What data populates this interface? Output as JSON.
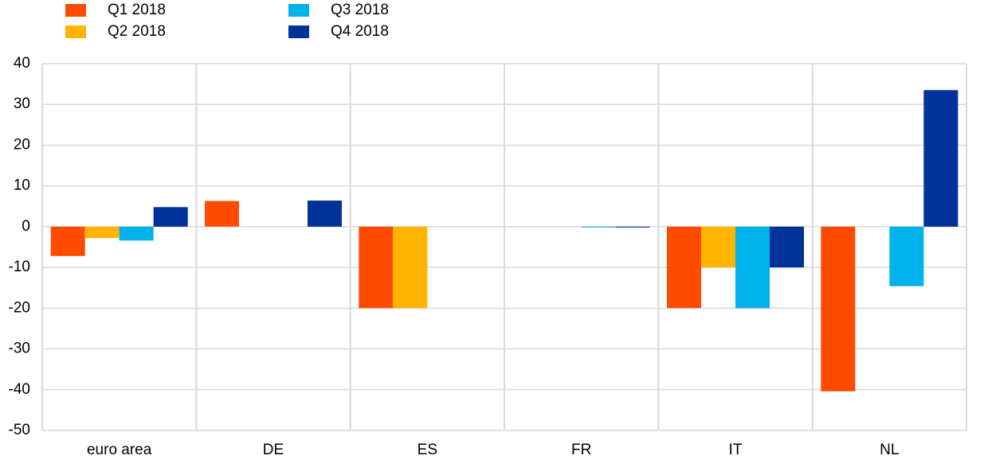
{
  "chart_data": {
    "type": "bar",
    "categories": [
      "euro area",
      "DE",
      "ES",
      "FR",
      "IT",
      "NL"
    ],
    "series": [
      {
        "name": "Q1 2018",
        "color": "#ff4b00",
        "values": [
          -7.2,
          6.3,
          -20,
          0,
          -20,
          -40.4
        ]
      },
      {
        "name": "Q2 2018",
        "color": "#ffb400",
        "values": [
          -2.8,
          0,
          -20,
          0,
          -10,
          0
        ]
      },
      {
        "name": "Q3 2018",
        "color": "#00b1ea",
        "values": [
          -3.4,
          0,
          0,
          -0.2,
          -20,
          -14.6
        ]
      },
      {
        "name": "Q4 2018",
        "color": "#003299",
        "values": [
          4.8,
          6.4,
          0,
          -0.2,
          -10,
          33.5
        ]
      }
    ],
    "ylim": [
      -50,
      40
    ],
    "yticks": [
      -50,
      -40,
      -30,
      -20,
      -10,
      0,
      10,
      20,
      30,
      40
    ],
    "grid": true
  }
}
